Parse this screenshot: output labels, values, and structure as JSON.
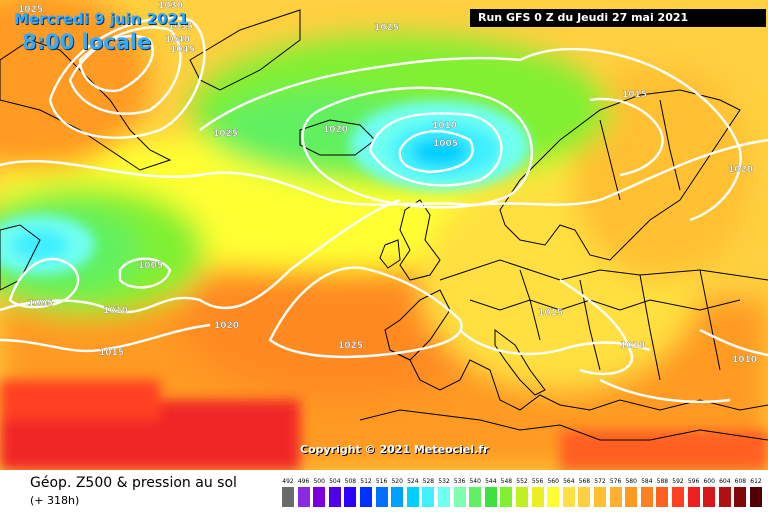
{
  "header": {
    "date_label": "Mercredi 9 juin 2021",
    "time_label": "8:00 locale",
    "run_label": "Run GFS 0 Z du Jeudi 27 mai 2021"
  },
  "copyright": "Copyright © 2021 Meteociel.fr",
  "caption": {
    "title": "Géop. Z500 & pression au sol",
    "lead_time": "(+ 318h)"
  },
  "isobar_labels": [
    "1025",
    "1030",
    "1035",
    "1040",
    "1045",
    "1025",
    "1025",
    "1020",
    "1010",
    "1005",
    "1015",
    "1020",
    "1005",
    "1005",
    "1010",
    "1015",
    "1020",
    "1025",
    "1015",
    "1010",
    "1010"
  ],
  "legend": {
    "values": [
      "492",
      "496",
      "500",
      "504",
      "508",
      "512",
      "516",
      "520",
      "524",
      "528",
      "532",
      "536",
      "540",
      "544",
      "548",
      "552",
      "556",
      "560",
      "564",
      "568",
      "572",
      "576",
      "580",
      "584",
      "588",
      "592",
      "596",
      "600",
      "604",
      "608",
      "612"
    ],
    "colors": [
      "#6a6a6a",
      "#8a2be2",
      "#7a00e0",
      "#5000e8",
      "#2a00ff",
      "#0030ff",
      "#0070ff",
      "#00a0ff",
      "#00d0ff",
      "#40f0ff",
      "#70fff0",
      "#80ffb0",
      "#60f060",
      "#40e040",
      "#80f030",
      "#c0f020",
      "#eaf020",
      "#ffff30",
      "#ffe040",
      "#ffd040",
      "#ffc030",
      "#ffb030",
      "#ff9a20",
      "#ff8020",
      "#ff6020",
      "#ff4020",
      "#f02020",
      "#d81818",
      "#b01010",
      "#800808",
      "#500000"
    ]
  },
  "colors": {
    "ocean_warm": "#ff9a2a",
    "field_yellow": "#ffff30",
    "low_cyan": "#40f0ff",
    "low_green": "#60f060",
    "hot_red": "#f02828",
    "isobar": "#ffffff",
    "coast": "#000000",
    "text_blue": "#33aaff"
  }
}
